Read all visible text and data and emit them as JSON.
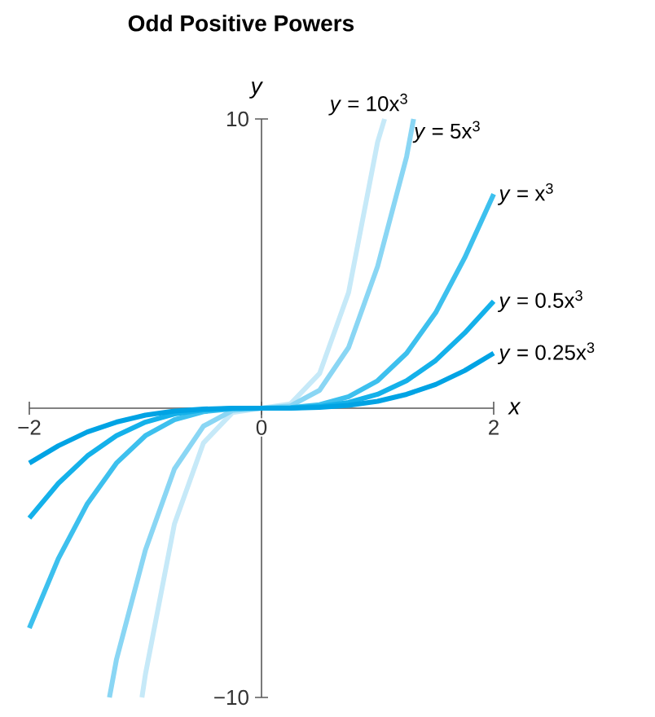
{
  "chart_data": {
    "type": "line",
    "title": "Odd Positive Powers",
    "xlabel": "*x*",
    "ylabel": "*y*",
    "xlim": [
      -2,
      2
    ],
    "ylim": [
      -10,
      10
    ],
    "xticks": [
      {
        "value": -2,
        "label": "−2"
      },
      {
        "value": 0,
        "label": "0"
      },
      {
        "value": 2,
        "label": "2"
      }
    ],
    "yticks": [
      {
        "value": -10,
        "label": "−10"
      },
      {
        "value": 10,
        "label": "10"
      }
    ],
    "grid": false,
    "legend": false,
    "marker": "none",
    "line_style": "solid",
    "series": [
      {
        "name": "*y* = 10x$^{3}$",
        "color": "#c6e9f8",
        "x": [
          -1.03,
          -1,
          -0.75,
          -0.5,
          -0.25,
          0,
          0.25,
          0.5,
          0.75,
          1,
          1.06
        ],
        "values": [
          -10,
          -9.2,
          -4.0,
          -1.2,
          -0.15,
          0,
          0.15,
          1.2,
          4.0,
          9.2,
          10
        ]
      },
      {
        "name": "*y* = 5x$^{3}$",
        "color": "#8ad6f4",
        "x": [
          -1.31,
          -1.25,
          -1,
          -0.75,
          -0.5,
          -0.25,
          0,
          0.25,
          0.5,
          0.75,
          1,
          1.25,
          1.31
        ],
        "values": [
          -10,
          -8.7,
          -4.9,
          -2.1,
          -0.62,
          -0.08,
          0,
          0.08,
          0.62,
          2.1,
          4.9,
          8.7,
          10
        ]
      },
      {
        "name": "*y* = x$^{3}$",
        "color": "#3dc0ee",
        "x": [
          -2,
          -1.75,
          -1.5,
          -1.25,
          -1,
          -0.75,
          -0.5,
          -0.25,
          0,
          0.25,
          0.5,
          0.75,
          1,
          1.25,
          1.5,
          1.75,
          2
        ],
        "values": [
          -7.6,
          -5.2,
          -3.3,
          -1.9,
          -0.95,
          -0.4,
          -0.12,
          -0.02,
          0,
          0.02,
          0.12,
          0.4,
          0.95,
          1.9,
          3.3,
          5.2,
          7.4
        ]
      },
      {
        "name": "*y* = 0.5x$^{3}$",
        "color": "#14b1ea",
        "x": [
          -2,
          -1.75,
          -1.5,
          -1.25,
          -1,
          -0.75,
          -0.5,
          -0.25,
          0,
          0.25,
          0.5,
          0.75,
          1,
          1.25,
          1.5,
          1.75,
          2
        ],
        "values": [
          -3.8,
          -2.6,
          -1.65,
          -0.95,
          -0.48,
          -0.2,
          -0.06,
          -0.01,
          0,
          0.01,
          0.06,
          0.2,
          0.48,
          0.95,
          1.65,
          2.6,
          3.7
        ]
      },
      {
        "name": "*y* = 0.25x$^{3}$",
        "color": "#00a3e4",
        "x": [
          -2,
          -1.75,
          -1.5,
          -1.25,
          -1,
          -0.75,
          -0.5,
          -0.25,
          0,
          0.25,
          0.5,
          0.75,
          1,
          1.25,
          1.5,
          1.75,
          2
        ],
        "values": [
          -1.9,
          -1.3,
          -0.82,
          -0.48,
          -0.24,
          -0.1,
          -0.03,
          0,
          0,
          0,
          0.03,
          0.1,
          0.24,
          0.48,
          0.82,
          1.3,
          1.9
        ]
      }
    ]
  }
}
